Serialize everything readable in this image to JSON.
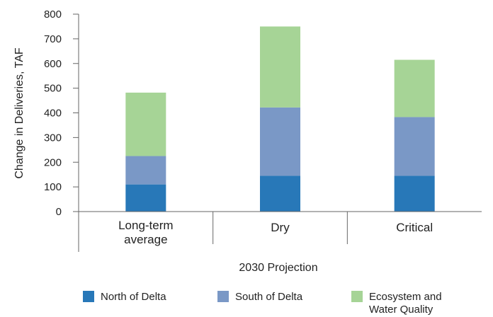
{
  "chart_data": {
    "type": "bar",
    "stacked": true,
    "categories": [
      "Long-term average",
      "Dry",
      "Critical"
    ],
    "category_lines": [
      [
        "Long-term",
        "average"
      ],
      [
        "Dry"
      ],
      [
        "Critical"
      ]
    ],
    "series": [
      {
        "name": "North of Delta",
        "values": [
          110,
          145,
          145
        ],
        "color": "#2878b8"
      },
      {
        "name": "South of Delta",
        "values": [
          115,
          277,
          238
        ],
        "color": "#7a98c6"
      },
      {
        "name": "Ecosystem and Water Quality",
        "name_lines": [
          "Ecosystem and",
          "Water Quality"
        ],
        "values": [
          257,
          328,
          232
        ],
        "color": "#a6d496"
      }
    ],
    "xlabel": "2030 Projection",
    "ylabel": "Change in Deliveries, TAF",
    "ylim": [
      0,
      800
    ],
    "yticks": [
      0,
      100,
      200,
      300,
      400,
      500,
      600,
      700,
      800
    ],
    "grid": false,
    "legend": "bottom"
  }
}
